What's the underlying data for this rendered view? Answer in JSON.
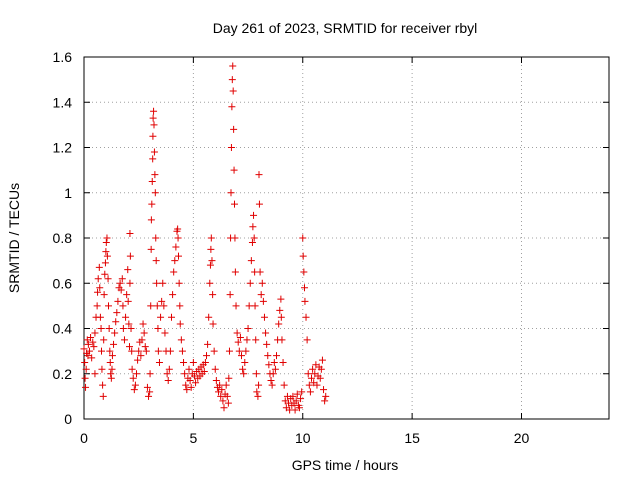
{
  "chart_data": {
    "type": "scatter",
    "title": "Day 261 of 2023, SRMTID for receiver rbyl",
    "xlabel": "GPS time / hours",
    "ylabel": "SRMTID / TECUs",
    "xlim": [
      0,
      24
    ],
    "ylim": [
      0,
      1.6
    ],
    "xticks": [
      0,
      5,
      10,
      15,
      20
    ],
    "xtick_labels": [
      "0",
      "5",
      "10",
      "15",
      "20"
    ],
    "yticks": [
      0,
      0.2,
      0.4,
      0.6,
      0.8,
      1,
      1.2,
      1.4,
      1.6
    ],
    "ytick_labels": [
      "0",
      "0.2",
      "0.4",
      "0.6",
      "0.8",
      "1",
      "1.2",
      "1.4",
      "1.6"
    ],
    "grid": true,
    "marker": "+",
    "color": "#e00000",
    "series": [
      {
        "name": "SRMTID",
        "points": [
          [
            0.0,
            0.31
          ],
          [
            0.03,
            0.25
          ],
          [
            0.05,
            0.18
          ],
          [
            0.07,
            0.14
          ],
          [
            0.1,
            0.22
          ],
          [
            0.12,
            0.29
          ],
          [
            0.15,
            0.35
          ],
          [
            0.18,
            0.28
          ],
          [
            0.2,
            0.33
          ],
          [
            0.25,
            0.3
          ],
          [
            0.3,
            0.36
          ],
          [
            0.35,
            0.27
          ],
          [
            0.4,
            0.34
          ],
          [
            0.45,
            0.32
          ],
          [
            0.5,
            0.38
          ],
          [
            0.5,
            0.2
          ],
          [
            0.55,
            0.45
          ],
          [
            0.6,
            0.5
          ],
          [
            0.62,
            0.56
          ],
          [
            0.65,
            0.62
          ],
          [
            0.7,
            0.67
          ],
          [
            0.72,
            0.58
          ],
          [
            0.75,
            0.45
          ],
          [
            0.78,
            0.4
          ],
          [
            0.8,
            0.3
          ],
          [
            0.82,
            0.22
          ],
          [
            0.85,
            0.15
          ],
          [
            0.88,
            0.1
          ],
          [
            0.9,
            0.35
          ],
          [
            0.92,
            0.55
          ],
          [
            0.95,
            0.64
          ],
          [
            0.98,
            0.69
          ],
          [
            1.0,
            0.74
          ],
          [
            1.02,
            0.78
          ],
          [
            1.05,
            0.8
          ],
          [
            1.07,
            0.72
          ],
          [
            1.1,
            0.62
          ],
          [
            1.12,
            0.5
          ],
          [
            1.15,
            0.4
          ],
          [
            1.18,
            0.3
          ],
          [
            1.2,
            0.25
          ],
          [
            1.22,
            0.2
          ],
          [
            1.25,
            0.18
          ],
          [
            1.28,
            0.22
          ],
          [
            1.3,
            0.28
          ],
          [
            1.35,
            0.33
          ],
          [
            1.4,
            0.38
          ],
          [
            1.45,
            0.43
          ],
          [
            1.5,
            0.47
          ],
          [
            1.55,
            0.52
          ],
          [
            1.6,
            0.58
          ],
          [
            1.65,
            0.6
          ],
          [
            1.7,
            0.57
          ],
          [
            1.75,
            0.62
          ],
          [
            1.78,
            0.5
          ],
          [
            1.8,
            0.4
          ],
          [
            1.85,
            0.35
          ],
          [
            1.9,
            0.45
          ],
          [
            1.95,
            0.55
          ],
          [
            2.0,
            0.66
          ],
          [
            2.02,
            0.52
          ],
          [
            2.05,
            0.42
          ],
          [
            2.08,
            0.32
          ],
          [
            2.1,
            0.6
          ],
          [
            2.1,
            0.82
          ],
          [
            2.12,
            0.72
          ],
          [
            2.15,
            0.4
          ],
          [
            2.18,
            0.3
          ],
          [
            2.2,
            0.22
          ],
          [
            2.25,
            0.18
          ],
          [
            2.3,
            0.13
          ],
          [
            2.35,
            0.15
          ],
          [
            2.4,
            0.2
          ],
          [
            2.45,
            0.26
          ],
          [
            2.5,
            0.3
          ],
          [
            2.55,
            0.34
          ],
          [
            2.6,
            0.28
          ],
          [
            2.65,
            0.35
          ],
          [
            2.7,
            0.42
          ],
          [
            2.75,
            0.38
          ],
          [
            2.8,
            0.32
          ],
          [
            2.85,
            0.3
          ],
          [
            2.9,
            0.14
          ],
          [
            2.95,
            0.1
          ],
          [
            3.0,
            0.12
          ],
          [
            3.02,
            0.2
          ],
          [
            3.05,
            0.5
          ],
          [
            3.07,
            0.75
          ],
          [
            3.08,
            0.88
          ],
          [
            3.1,
            0.95
          ],
          [
            3.12,
            1.05
          ],
          [
            3.14,
            1.15
          ],
          [
            3.15,
            1.25
          ],
          [
            3.16,
            1.33
          ],
          [
            3.18,
            1.36
          ],
          [
            3.2,
            1.3
          ],
          [
            3.22,
            1.18
          ],
          [
            3.24,
            1.08
          ],
          [
            3.26,
            1.0
          ],
          [
            3.28,
            0.8
          ],
          [
            3.3,
            0.7
          ],
          [
            3.32,
            0.6
          ],
          [
            3.35,
            0.5
          ],
          [
            3.38,
            0.4
          ],
          [
            3.4,
            0.3
          ],
          [
            3.45,
            0.25
          ],
          [
            3.5,
            0.45
          ],
          [
            3.55,
            0.52
          ],
          [
            3.6,
            0.6
          ],
          [
            3.65,
            0.5
          ],
          [
            3.7,
            0.38
          ],
          [
            3.75,
            0.3
          ],
          [
            3.8,
            0.2
          ],
          [
            3.85,
            0.17
          ],
          [
            3.9,
            0.22
          ],
          [
            3.95,
            0.3
          ],
          [
            4.0,
            0.45
          ],
          [
            4.05,
            0.55
          ],
          [
            4.1,
            0.65
          ],
          [
            4.15,
            0.7
          ],
          [
            4.2,
            0.76
          ],
          [
            4.25,
            0.83
          ],
          [
            4.28,
            0.84
          ],
          [
            4.3,
            0.8
          ],
          [
            4.32,
            0.72
          ],
          [
            4.35,
            0.6
          ],
          [
            4.38,
            0.5
          ],
          [
            4.4,
            0.42
          ],
          [
            4.45,
            0.35
          ],
          [
            4.5,
            0.3
          ],
          [
            4.55,
            0.25
          ],
          [
            4.6,
            0.2
          ],
          [
            4.65,
            0.15
          ],
          [
            4.7,
            0.13
          ],
          [
            4.75,
            0.18
          ],
          [
            4.8,
            0.22
          ],
          [
            4.85,
            0.17
          ],
          [
            4.9,
            0.14
          ],
          [
            4.95,
            0.2
          ],
          [
            5.0,
            0.25
          ],
          [
            5.05,
            0.19
          ],
          [
            5.1,
            0.16
          ],
          [
            5.15,
            0.21
          ],
          [
            5.2,
            0.18
          ],
          [
            5.25,
            0.22
          ],
          [
            5.3,
            0.19
          ],
          [
            5.35,
            0.23
          ],
          [
            5.4,
            0.2
          ],
          [
            5.45,
            0.24
          ],
          [
            5.5,
            0.21
          ],
          [
            5.55,
            0.25
          ],
          [
            5.6,
            0.28
          ],
          [
            5.65,
            0.33
          ],
          [
            5.7,
            0.45
          ],
          [
            5.75,
            0.6
          ],
          [
            5.78,
            0.68
          ],
          [
            5.8,
            0.75
          ],
          [
            5.82,
            0.8
          ],
          [
            5.85,
            0.7
          ],
          [
            5.88,
            0.55
          ],
          [
            5.9,
            0.42
          ],
          [
            5.95,
            0.3
          ],
          [
            6.0,
            0.22
          ],
          [
            6.05,
            0.17
          ],
          [
            6.1,
            0.14
          ],
          [
            6.15,
            0.12
          ],
          [
            6.2,
            0.15
          ],
          [
            6.25,
            0.1
          ],
          [
            6.3,
            0.13
          ],
          [
            6.35,
            0.08
          ],
          [
            6.4,
            0.05
          ],
          [
            6.45,
            0.11
          ],
          [
            6.5,
            0.15
          ],
          [
            6.55,
            0.1
          ],
          [
            6.6,
            0.07
          ],
          [
            6.62,
            0.18
          ],
          [
            6.65,
            0.3
          ],
          [
            6.68,
            0.55
          ],
          [
            6.7,
            0.8
          ],
          [
            6.72,
            1.0
          ],
          [
            6.74,
            1.2
          ],
          [
            6.76,
            1.38
          ],
          [
            6.78,
            1.5
          ],
          [
            6.8,
            1.56
          ],
          [
            6.82,
            1.45
          ],
          [
            6.84,
            1.28
          ],
          [
            6.86,
            1.1
          ],
          [
            6.88,
            0.95
          ],
          [
            6.9,
            0.8
          ],
          [
            6.92,
            0.65
          ],
          [
            6.95,
            0.5
          ],
          [
            7.0,
            0.38
          ],
          [
            7.05,
            0.34
          ],
          [
            7.1,
            0.3
          ],
          [
            7.15,
            0.36
          ],
          [
            7.2,
            0.28
          ],
          [
            7.25,
            0.22
          ],
          [
            7.3,
            0.2
          ],
          [
            7.35,
            0.25
          ],
          [
            7.4,
            0.3
          ],
          [
            7.45,
            0.35
          ],
          [
            7.5,
            0.4
          ],
          [
            7.55,
            0.5
          ],
          [
            7.6,
            0.6
          ],
          [
            7.65,
            0.7
          ],
          [
            7.7,
            0.78
          ],
          [
            7.72,
            0.85
          ],
          [
            7.75,
            0.9
          ],
          [
            7.78,
            0.8
          ],
          [
            7.8,
            0.65
          ],
          [
            7.82,
            0.5
          ],
          [
            7.85,
            0.35
          ],
          [
            7.88,
            0.2
          ],
          [
            7.9,
            0.12
          ],
          [
            7.95,
            0.1
          ],
          [
            7.98,
            0.15
          ],
          [
            8.0,
            1.08
          ],
          [
            8.02,
            0.95
          ],
          [
            8.05,
            0.65
          ],
          [
            8.1,
            0.55
          ],
          [
            8.15,
            0.6
          ],
          [
            8.2,
            0.52
          ],
          [
            8.25,
            0.45
          ],
          [
            8.3,
            0.38
          ],
          [
            8.35,
            0.33
          ],
          [
            8.4,
            0.28
          ],
          [
            8.45,
            0.24
          ],
          [
            8.5,
            0.2
          ],
          [
            8.55,
            0.17
          ],
          [
            8.6,
            0.15
          ],
          [
            8.65,
            0.2
          ],
          [
            8.7,
            0.25
          ],
          [
            8.75,
            0.22
          ],
          [
            8.8,
            0.28
          ],
          [
            8.85,
            0.35
          ],
          [
            8.9,
            0.42
          ],
          [
            8.95,
            0.48
          ],
          [
            9.0,
            0.53
          ],
          [
            9.02,
            0.45
          ],
          [
            9.05,
            0.35
          ],
          [
            9.1,
            0.25
          ],
          [
            9.15,
            0.15
          ],
          [
            9.2,
            0.08
          ],
          [
            9.25,
            0.05
          ],
          [
            9.3,
            0.1
          ],
          [
            9.35,
            0.07
          ],
          [
            9.4,
            0.04
          ],
          [
            9.45,
            0.09
          ],
          [
            9.5,
            0.06
          ],
          [
            9.55,
            0.1
          ],
          [
            9.6,
            0.07
          ],
          [
            9.65,
            0.04
          ],
          [
            9.7,
            0.08
          ],
          [
            9.75,
            0.11
          ],
          [
            9.8,
            0.06
          ],
          [
            9.85,
            0.05
          ],
          [
            9.9,
            0.09
          ],
          [
            9.95,
            0.12
          ],
          [
            10.0,
            0.8
          ],
          [
            10.02,
            0.72
          ],
          [
            10.05,
            0.65
          ],
          [
            10.08,
            0.58
          ],
          [
            10.1,
            0.52
          ],
          [
            10.15,
            0.45
          ],
          [
            10.2,
            0.35
          ],
          [
            10.25,
            0.2
          ],
          [
            10.3,
            0.15
          ],
          [
            10.35,
            0.12
          ],
          [
            10.4,
            0.18
          ],
          [
            10.45,
            0.22
          ],
          [
            10.5,
            0.16
          ],
          [
            10.55,
            0.2
          ],
          [
            10.6,
            0.24
          ],
          [
            10.65,
            0.15
          ],
          [
            10.7,
            0.19
          ],
          [
            10.75,
            0.23
          ],
          [
            10.8,
            0.18
          ],
          [
            10.85,
            0.22
          ],
          [
            10.9,
            0.26
          ],
          [
            10.95,
            0.13
          ],
          [
            11.0,
            0.08
          ],
          [
            11.05,
            0.1
          ]
        ]
      }
    ]
  }
}
